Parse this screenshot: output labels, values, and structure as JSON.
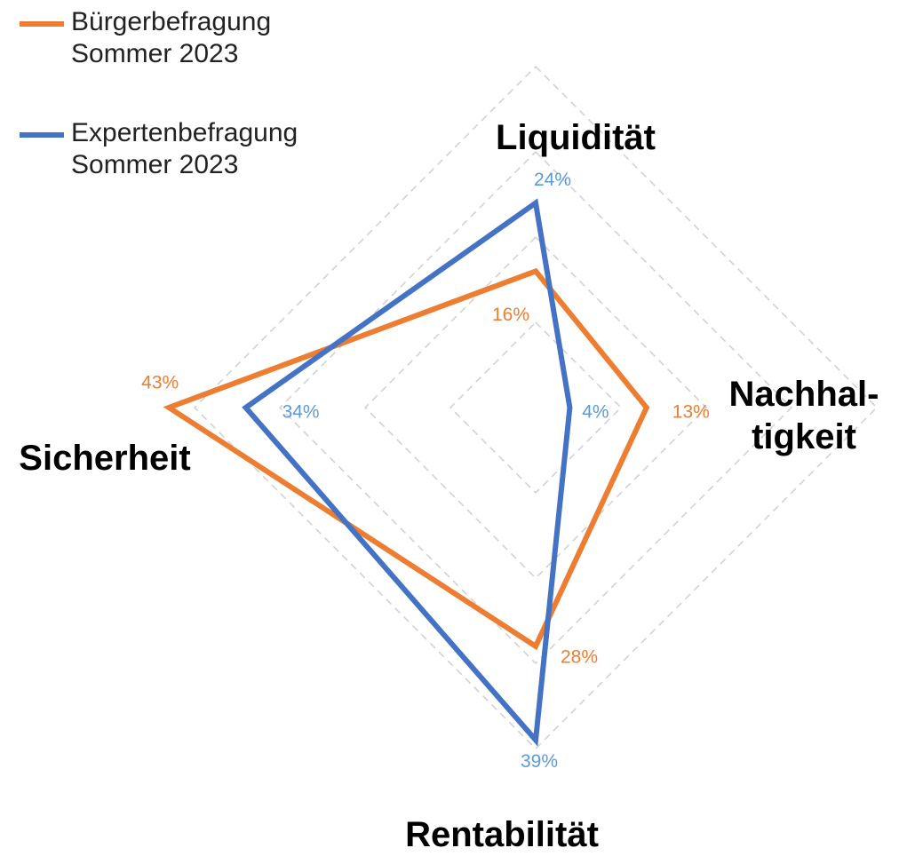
{
  "chart_data": {
    "type": "radar",
    "categories": [
      "Liquidität",
      "Nachhal-\ntigkeit",
      "Rentabilität",
      "Sicherheit"
    ],
    "series": [
      {
        "name": "Bürgerbefragung\nSommer 2023",
        "color": "#ed7d31",
        "label_color": "#ed7d31",
        "values": [
          16,
          13,
          28,
          43
        ],
        "value_labels": [
          "16%",
          "13%",
          "28%",
          "43%"
        ]
      },
      {
        "name": "Expertenbefragung\nSommer 2023",
        "color": "#4472c4",
        "label_color": "#5b9bd5",
        "values": [
          24,
          4,
          39,
          34
        ],
        "value_labels": [
          "24%",
          "4%",
          "39%",
          "34%"
        ]
      }
    ],
    "ylim": [
      0,
      40
    ],
    "yticks": [
      10,
      20,
      30,
      40
    ],
    "grid": true,
    "legend": "top-left"
  }
}
